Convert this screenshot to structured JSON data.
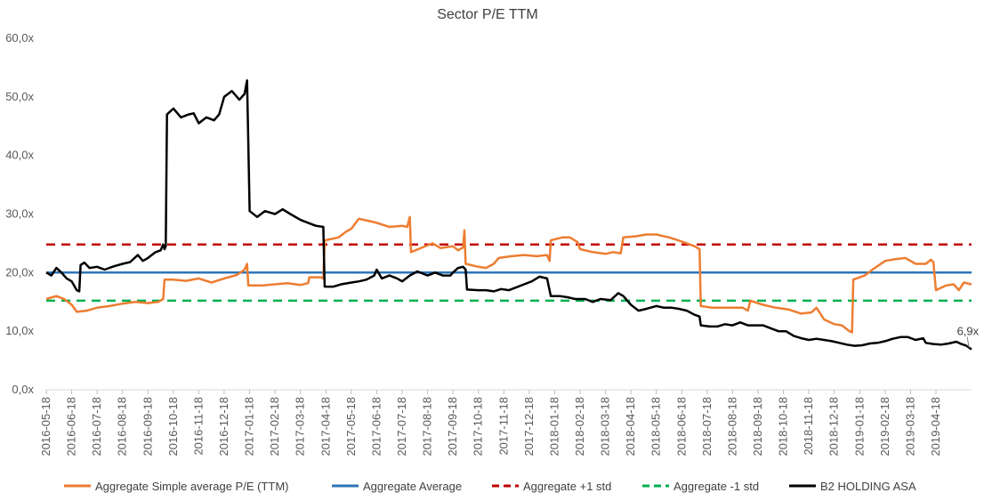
{
  "chart_data": {
    "type": "line",
    "title": "Sector P/E TTM",
    "xlabel": "",
    "ylabel": "",
    "ylim": [
      0,
      60
    ],
    "y_ticks": [
      "0,0x",
      "10,0x",
      "20,0x",
      "30,0x",
      "40,0x",
      "50,0x",
      "60,0x"
    ],
    "y_tick_values": [
      0,
      10,
      20,
      30,
      40,
      50,
      60
    ],
    "x_range_months": [
      0,
      36.4
    ],
    "x_tick_labels": [
      "2016-05-18",
      "2016-06-18",
      "2016-07-18",
      "2016-08-18",
      "2016-09-18",
      "2016-10-18",
      "2016-11-18",
      "2016-12-18",
      "2017-01-18",
      "2017-02-18",
      "2017-03-18",
      "2017-04-18",
      "2017-05-18",
      "2017-06-18",
      "2017-07-18",
      "2017-08-18",
      "2017-09-18",
      "2017-10-18",
      "2017-11-18",
      "2017-12-18",
      "2018-01-18",
      "2018-02-18",
      "2018-03-18",
      "2018-04-18",
      "2018-05-18",
      "2018-06-18",
      "2018-07-18",
      "2018-08-18",
      "2018-09-18",
      "2018-10-18",
      "2018-11-18",
      "2018-12-18",
      "2019-01-18",
      "2019-02-18",
      "2019-03-18",
      "2019-04-18"
    ],
    "annotation": {
      "text": "6,9x",
      "x": 36.3,
      "y": 6.9
    },
    "legend_position": "bottom",
    "series": [
      {
        "name": "Aggregate Simple average P/E (TTM)",
        "color": "#ED7D31",
        "style": "solid",
        "points": [
          [
            0,
            15.5
          ],
          [
            0.4,
            16.0
          ],
          [
            0.7,
            15.5
          ],
          [
            1.0,
            14.5
          ],
          [
            1.2,
            13.3
          ],
          [
            1.6,
            13.5
          ],
          [
            2.0,
            14.0
          ],
          [
            2.5,
            14.3
          ],
          [
            3.0,
            14.7
          ],
          [
            3.5,
            15.0
          ],
          [
            4.0,
            14.8
          ],
          [
            4.4,
            15.0
          ],
          [
            4.6,
            15.5
          ],
          [
            4.65,
            18.8
          ],
          [
            5.0,
            18.8
          ],
          [
            5.5,
            18.6
          ],
          [
            6.0,
            19.0
          ],
          [
            6.5,
            18.3
          ],
          [
            7.0,
            19.0
          ],
          [
            7.5,
            19.6
          ],
          [
            7.8,
            20.5
          ],
          [
            7.9,
            21.5
          ],
          [
            7.95,
            17.8
          ],
          [
            8.5,
            17.8
          ],
          [
            9.0,
            18.0
          ],
          [
            9.5,
            18.2
          ],
          [
            10.0,
            17.9
          ],
          [
            10.3,
            18.2
          ],
          [
            10.35,
            19.2
          ],
          [
            10.8,
            19.2
          ],
          [
            10.9,
            19.0
          ],
          [
            10.95,
            25.5
          ],
          [
            11.5,
            26.0
          ],
          [
            11.8,
            27.0
          ],
          [
            12.0,
            27.5
          ],
          [
            12.3,
            29.2
          ],
          [
            12.7,
            28.8
          ],
          [
            13.0,
            28.5
          ],
          [
            13.5,
            27.8
          ],
          [
            14.0,
            28.0
          ],
          [
            14.2,
            27.8
          ],
          [
            14.3,
            29.5
          ],
          [
            14.35,
            23.5
          ],
          [
            14.8,
            24.3
          ],
          [
            15.2,
            25.0
          ],
          [
            15.5,
            24.2
          ],
          [
            16.0,
            24.5
          ],
          [
            16.2,
            23.8
          ],
          [
            16.4,
            24.3
          ],
          [
            16.45,
            27.2
          ],
          [
            16.5,
            21.5
          ],
          [
            17.0,
            21.0
          ],
          [
            17.3,
            20.8
          ],
          [
            17.6,
            21.5
          ],
          [
            17.8,
            22.5
          ],
          [
            18.3,
            22.8
          ],
          [
            18.8,
            23.0
          ],
          [
            19.3,
            22.8
          ],
          [
            19.7,
            23.0
          ],
          [
            19.8,
            22.0
          ],
          [
            19.85,
            25.5
          ],
          [
            20.3,
            26.0
          ],
          [
            20.6,
            26.0
          ],
          [
            20.9,
            25.2
          ],
          [
            21.0,
            24.0
          ],
          [
            21.5,
            23.5
          ],
          [
            22.0,
            23.2
          ],
          [
            22.3,
            23.5
          ],
          [
            22.6,
            23.3
          ],
          [
            22.7,
            26.0
          ],
          [
            23.2,
            26.2
          ],
          [
            23.6,
            26.5
          ],
          [
            24.0,
            26.5
          ],
          [
            24.5,
            26.0
          ],
          [
            25.0,
            25.3
          ],
          [
            25.5,
            24.5
          ],
          [
            25.7,
            24.0
          ],
          [
            25.75,
            14.3
          ],
          [
            26.2,
            14.0
          ],
          [
            26.5,
            14.0
          ],
          [
            27.0,
            14.0
          ],
          [
            27.4,
            14.0
          ],
          [
            27.6,
            13.5
          ],
          [
            27.7,
            15.2
          ],
          [
            28.2,
            14.5
          ],
          [
            28.7,
            14.0
          ],
          [
            29.2,
            13.7
          ],
          [
            29.7,
            13.0
          ],
          [
            30.1,
            13.2
          ],
          [
            30.3,
            14.0
          ],
          [
            30.6,
            12.0
          ],
          [
            31.0,
            11.2
          ],
          [
            31.3,
            11.0
          ],
          [
            31.6,
            10.0
          ],
          [
            31.7,
            9.8
          ],
          [
            31.75,
            18.8
          ],
          [
            32.2,
            19.5
          ],
          [
            32.5,
            20.5
          ],
          [
            33.0,
            22.0
          ],
          [
            33.4,
            22.3
          ],
          [
            33.8,
            22.5
          ],
          [
            34.2,
            21.5
          ],
          [
            34.6,
            21.5
          ],
          [
            34.8,
            22.2
          ],
          [
            34.9,
            21.8
          ],
          [
            35.0,
            17.0
          ],
          [
            35.4,
            17.8
          ],
          [
            35.7,
            18.0
          ],
          [
            35.9,
            17.0
          ],
          [
            36.1,
            18.3
          ],
          [
            36.4,
            18.0
          ]
        ]
      },
      {
        "name": "Aggregate Average",
        "color": "#2E75B6",
        "style": "solid",
        "points": [
          [
            0,
            20.0
          ],
          [
            36.4,
            20.0
          ]
        ]
      },
      {
        "name": "Aggregate  +1 std",
        "color": "#C00000",
        "style": "dashed",
        "points": [
          [
            0,
            24.8
          ],
          [
            36.4,
            24.8
          ]
        ]
      },
      {
        "name": "Aggregate  -1 std",
        "color": "#00B050",
        "style": "dashed",
        "points": [
          [
            0,
            15.2
          ],
          [
            36.4,
            15.2
          ]
        ]
      },
      {
        "name": "B2 HOLDING ASA",
        "color": "#000000",
        "style": "solid",
        "points": [
          [
            0,
            20.0
          ],
          [
            0.2,
            19.5
          ],
          [
            0.4,
            20.8
          ],
          [
            0.6,
            20.0
          ],
          [
            0.8,
            19.0
          ],
          [
            1.0,
            18.5
          ],
          [
            1.2,
            17.0
          ],
          [
            1.3,
            16.8
          ],
          [
            1.35,
            21.3
          ],
          [
            1.5,
            21.7
          ],
          [
            1.7,
            20.8
          ],
          [
            2.0,
            21.0
          ],
          [
            2.3,
            20.5
          ],
          [
            2.6,
            21.0
          ],
          [
            3.0,
            21.5
          ],
          [
            3.3,
            21.8
          ],
          [
            3.6,
            23.0
          ],
          [
            3.8,
            22.0
          ],
          [
            4.0,
            22.5
          ],
          [
            4.3,
            23.5
          ],
          [
            4.5,
            23.8
          ],
          [
            4.6,
            24.8
          ],
          [
            4.65,
            24.0
          ],
          [
            4.7,
            24.5
          ],
          [
            4.75,
            47.0
          ],
          [
            5.0,
            48.0
          ],
          [
            5.3,
            46.5
          ],
          [
            5.6,
            47.0
          ],
          [
            5.8,
            47.2
          ],
          [
            6.0,
            45.5
          ],
          [
            6.3,
            46.5
          ],
          [
            6.6,
            46.0
          ],
          [
            6.8,
            47.0
          ],
          [
            7.0,
            50.0
          ],
          [
            7.3,
            51.0
          ],
          [
            7.6,
            49.5
          ],
          [
            7.8,
            50.5
          ],
          [
            7.9,
            52.8
          ],
          [
            8.0,
            30.5
          ],
          [
            8.3,
            29.5
          ],
          [
            8.6,
            30.5
          ],
          [
            9.0,
            30.0
          ],
          [
            9.3,
            30.8
          ],
          [
            9.6,
            30.0
          ],
          [
            10.0,
            29.0
          ],
          [
            10.3,
            28.5
          ],
          [
            10.6,
            28.0
          ],
          [
            10.9,
            27.8
          ],
          [
            10.95,
            17.6
          ],
          [
            11.3,
            17.6
          ],
          [
            11.6,
            18.0
          ],
          [
            12.0,
            18.3
          ],
          [
            12.3,
            18.5
          ],
          [
            12.6,
            18.8
          ],
          [
            12.9,
            19.5
          ],
          [
            13.0,
            20.5
          ],
          [
            13.2,
            19.0
          ],
          [
            13.5,
            19.5
          ],
          [
            13.8,
            19.0
          ],
          [
            14.0,
            18.5
          ],
          [
            14.3,
            19.5
          ],
          [
            14.6,
            20.2
          ],
          [
            15.0,
            19.5
          ],
          [
            15.3,
            20.0
          ],
          [
            15.6,
            19.5
          ],
          [
            15.9,
            19.5
          ],
          [
            16.0,
            20.0
          ],
          [
            16.2,
            20.8
          ],
          [
            16.4,
            21.0
          ],
          [
            16.5,
            20.5
          ],
          [
            16.55,
            17.1
          ],
          [
            17.0,
            17.0
          ],
          [
            17.3,
            17.0
          ],
          [
            17.6,
            16.8
          ],
          [
            17.9,
            17.2
          ],
          [
            18.2,
            17.0
          ],
          [
            18.5,
            17.5
          ],
          [
            18.8,
            18.0
          ],
          [
            19.1,
            18.5
          ],
          [
            19.4,
            19.3
          ],
          [
            19.7,
            19.0
          ],
          [
            19.85,
            16.0
          ],
          [
            20.2,
            16.0
          ],
          [
            20.5,
            15.8
          ],
          [
            20.8,
            15.5
          ],
          [
            21.2,
            15.5
          ],
          [
            21.5,
            15.0
          ],
          [
            21.8,
            15.5
          ],
          [
            22.2,
            15.3
          ],
          [
            22.5,
            16.5
          ],
          [
            22.7,
            16.0
          ],
          [
            23.0,
            14.5
          ],
          [
            23.3,
            13.5
          ],
          [
            23.6,
            13.8
          ],
          [
            24.0,
            14.3
          ],
          [
            24.3,
            14.0
          ],
          [
            24.6,
            14.0
          ],
          [
            24.9,
            13.8
          ],
          [
            25.2,
            13.5
          ],
          [
            25.5,
            12.8
          ],
          [
            25.7,
            12.5
          ],
          [
            25.75,
            11.0
          ],
          [
            26.1,
            10.8
          ],
          [
            26.4,
            10.8
          ],
          [
            26.7,
            11.2
          ],
          [
            27.0,
            11.0
          ],
          [
            27.3,
            11.5
          ],
          [
            27.6,
            11.0
          ],
          [
            27.9,
            11.0
          ],
          [
            28.2,
            11.0
          ],
          [
            28.5,
            10.5
          ],
          [
            28.8,
            10.0
          ],
          [
            29.1,
            10.0
          ],
          [
            29.4,
            9.2
          ],
          [
            29.7,
            8.8
          ],
          [
            30.0,
            8.5
          ],
          [
            30.3,
            8.7
          ],
          [
            30.6,
            8.5
          ],
          [
            30.9,
            8.3
          ],
          [
            31.2,
            8.0
          ],
          [
            31.5,
            7.7
          ],
          [
            31.8,
            7.5
          ],
          [
            32.1,
            7.6
          ],
          [
            32.4,
            7.9
          ],
          [
            32.7,
            8.0
          ],
          [
            33.0,
            8.3
          ],
          [
            33.3,
            8.7
          ],
          [
            33.6,
            9.0
          ],
          [
            33.9,
            9.0
          ],
          [
            34.2,
            8.5
          ],
          [
            34.5,
            8.8
          ],
          [
            34.6,
            8.0
          ],
          [
            34.9,
            7.8
          ],
          [
            35.2,
            7.7
          ],
          [
            35.5,
            7.9
          ],
          [
            35.8,
            8.2
          ],
          [
            36.0,
            7.8
          ],
          [
            36.2,
            7.5
          ],
          [
            36.4,
            6.9
          ]
        ]
      }
    ]
  }
}
